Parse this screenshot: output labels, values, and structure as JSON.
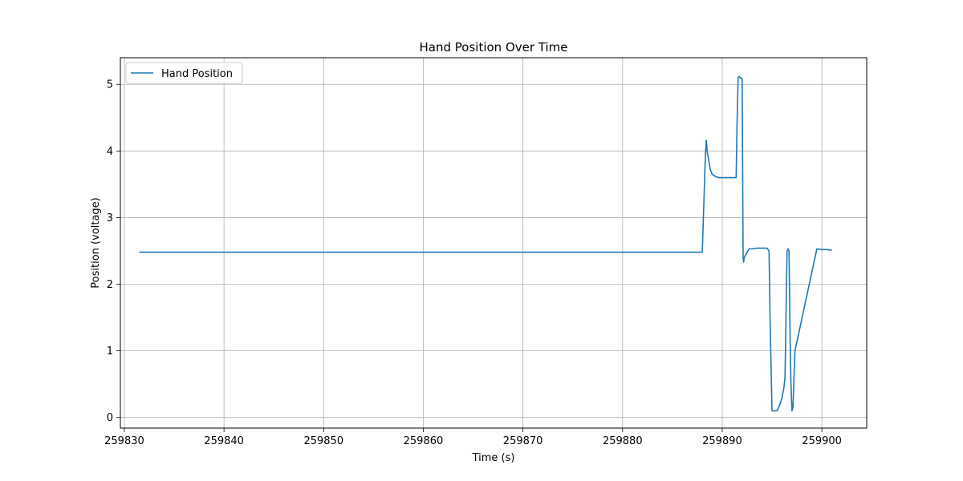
{
  "chart_data": {
    "type": "line",
    "title": "Hand Position Over Time",
    "xlabel": "Time (s)",
    "ylabel": "Position (voltage)",
    "xlim": [
      259829.6,
      259904.5
    ],
    "ylim": [
      -0.16,
      5.4
    ],
    "xticks": [
      259830,
      259840,
      259850,
      259860,
      259870,
      259880,
      259890,
      259900
    ],
    "yticks": [
      0,
      1,
      2,
      3,
      4,
      5
    ],
    "grid": true,
    "legend": {
      "placement": "top-left",
      "entries": [
        "Hand Position"
      ]
    },
    "series": [
      {
        "name": "Hand Position",
        "color": "#1f77b4",
        "x": [
          259831.5,
          259888.0,
          259888.3,
          259888.4,
          259888.5,
          259888.6,
          259888.8,
          259889.0,
          259889.3,
          259889.6,
          259890.0,
          259890.5,
          259891.0,
          259891.4,
          259891.5,
          259891.6,
          259891.7,
          259891.8,
          259891.9,
          259892.0,
          259892.1,
          259892.15,
          259892.2,
          259892.5,
          259892.7,
          259893.0,
          259893.5,
          259894.0,
          259894.3,
          259894.5,
          259894.7,
          259894.8,
          259894.9,
          259895.0,
          259895.2,
          259895.5,
          259895.8,
          259896.0,
          259896.2,
          259896.3,
          259896.4,
          259896.5,
          259896.6,
          259896.7,
          259896.8,
          259896.9,
          259897.0,
          259897.1,
          259897.2,
          259897.3,
          259899.5,
          259900.0,
          259900.5,
          259901.0
        ],
        "y": [
          2.48,
          2.48,
          3.9,
          4.16,
          3.98,
          3.9,
          3.72,
          3.65,
          3.62,
          3.6,
          3.6,
          3.6,
          3.6,
          3.6,
          4.5,
          5.1,
          5.12,
          5.1,
          5.1,
          5.08,
          2.4,
          2.33,
          2.4,
          2.48,
          2.53,
          2.53,
          2.54,
          2.54,
          2.54,
          2.54,
          2.5,
          1.5,
          0.8,
          0.1,
          0.1,
          0.1,
          0.2,
          0.3,
          0.45,
          0.6,
          1.5,
          2.48,
          2.53,
          2.5,
          1.3,
          0.5,
          0.1,
          0.15,
          0.6,
          1.0,
          2.53,
          2.52,
          2.52,
          2.51
        ]
      }
    ]
  }
}
